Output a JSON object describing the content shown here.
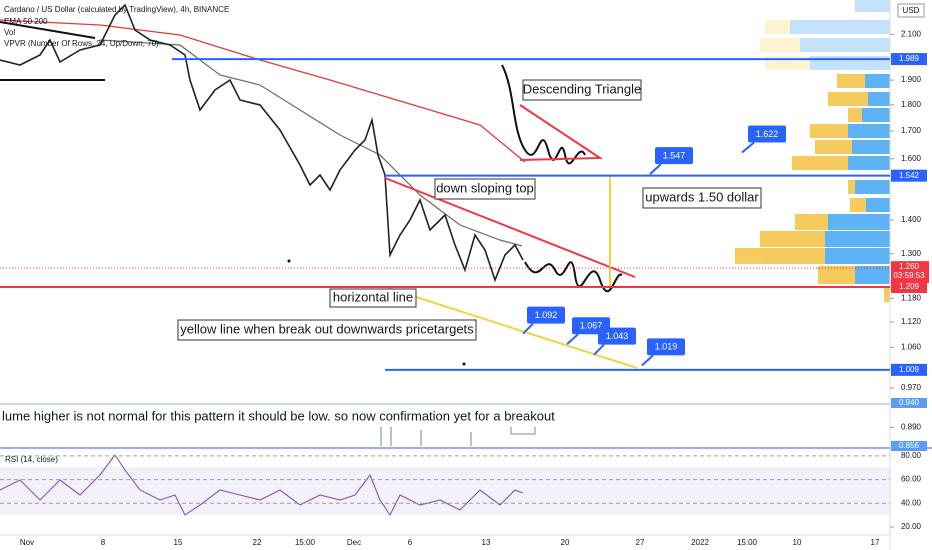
{
  "header": {
    "title": "Cardano / US Dollar (calculated by TradingView), 4h, BINANCE",
    "indicator_1": "EMA 50 200",
    "indicator_2": "Vol",
    "indicator_3": "VPVR (Number Of Rows, 24, Up/Down, 70)",
    "currency": "USD"
  },
  "price_axis": {
    "log_scale": true,
    "ylim": [
      0.847,
      2.263
    ],
    "ticks": [
      {
        "value": 2.1,
        "label": "2.100"
      },
      {
        "value": 1.9,
        "label": "1.900"
      },
      {
        "value": 1.8,
        "label": "1.800"
      },
      {
        "value": 1.7,
        "label": "1.700"
      },
      {
        "value": 1.6,
        "label": "1.600"
      },
      {
        "value": 1.4,
        "label": "1.400"
      },
      {
        "value": 1.3,
        "label": "1.300"
      },
      {
        "value": 1.18,
        "label": "1.180"
      },
      {
        "value": 1.12,
        "label": "1.120"
      },
      {
        "value": 1.06,
        "label": "1.060"
      },
      {
        "value": 0.97,
        "label": "0.970"
      },
      {
        "value": 0.89,
        "label": "0.890"
      }
    ]
  },
  "levels": [
    {
      "value": 1.989,
      "label": "1.989",
      "color": "#2962ff"
    },
    {
      "value": 1.542,
      "label": "1.542",
      "color": "#2962ff"
    },
    {
      "value": 1.209,
      "label": "1.209",
      "color": "#f23645"
    },
    {
      "value": 1.009,
      "label": "1.009",
      "color": "#2962ff"
    }
  ],
  "last_price": {
    "value": 1.26,
    "label": "1.260",
    "countdown": "03:59:53",
    "color": "#f23645"
  },
  "volume_axis_labels": [
    "0.940",
    "0.856"
  ],
  "targets": [
    {
      "value": 1.622,
      "label": "1.622"
    },
    {
      "value": 1.547,
      "label": "1.547"
    },
    {
      "value": 1.092,
      "label": "1.092"
    },
    {
      "value": 1.067,
      "label": "1.067"
    },
    {
      "value": 1.043,
      "label": "1.043"
    },
    {
      "value": 1.019,
      "label": "1.019"
    }
  ],
  "annotations": {
    "descending_triangle": "Descending Triangle",
    "down_sloping_top": "down sloping top",
    "upwards": "upwards 1.50 dollar",
    "horizontal_line": "horizontal line",
    "yellow_line": "yellow line when break out downwards pricetargets",
    "volume_note": "lume higher is not normal for this pattern it should be low. so now confirmation yet for a breakout"
  },
  "rsi": {
    "title": "RSI (14, close)",
    "ylim": [
      9,
      85
    ],
    "ticks": [
      {
        "value": 80,
        "label": "80.00"
      },
      {
        "value": 60,
        "label": "60.00"
      },
      {
        "value": 40,
        "label": "40.00"
      },
      {
        "value": 20,
        "label": "20.00"
      }
    ]
  },
  "time_axis": [
    "Nov",
    "8",
    "15",
    "22",
    "15:00",
    "Dec",
    "6",
    "13",
    "20",
    "27",
    "2022",
    "15:00",
    "10",
    "17"
  ]
}
